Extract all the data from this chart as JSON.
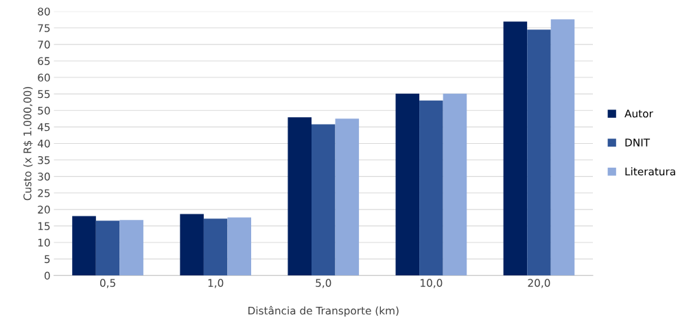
{
  "chart_data": {
    "type": "bar",
    "xlabel": "Distância de Transporte (km)",
    "ylabel": "Custo (x R$ 1.000,00)",
    "categories": [
      "0,5",
      "1,0",
      "5,0",
      "10,0",
      "20,0"
    ],
    "series": [
      {
        "name": "Autor",
        "color": "#002060",
        "values": [
          18.0,
          18.6,
          47.9,
          55.1,
          76.9
        ]
      },
      {
        "name": "DNIT",
        "color": "#2f5597",
        "values": [
          16.6,
          17.2,
          45.8,
          53.0,
          74.5
        ]
      },
      {
        "name": "Literatura",
        "color": "#8faadc",
        "values": [
          16.8,
          17.6,
          47.5,
          55.1,
          77.6
        ]
      }
    ],
    "ylim": [
      0,
      80
    ],
    "yticks": [
      0,
      5,
      10,
      15,
      20,
      25,
      30,
      35,
      40,
      45,
      50,
      55,
      60,
      65,
      70,
      75,
      80
    ],
    "grid": "y",
    "legend": "right"
  }
}
